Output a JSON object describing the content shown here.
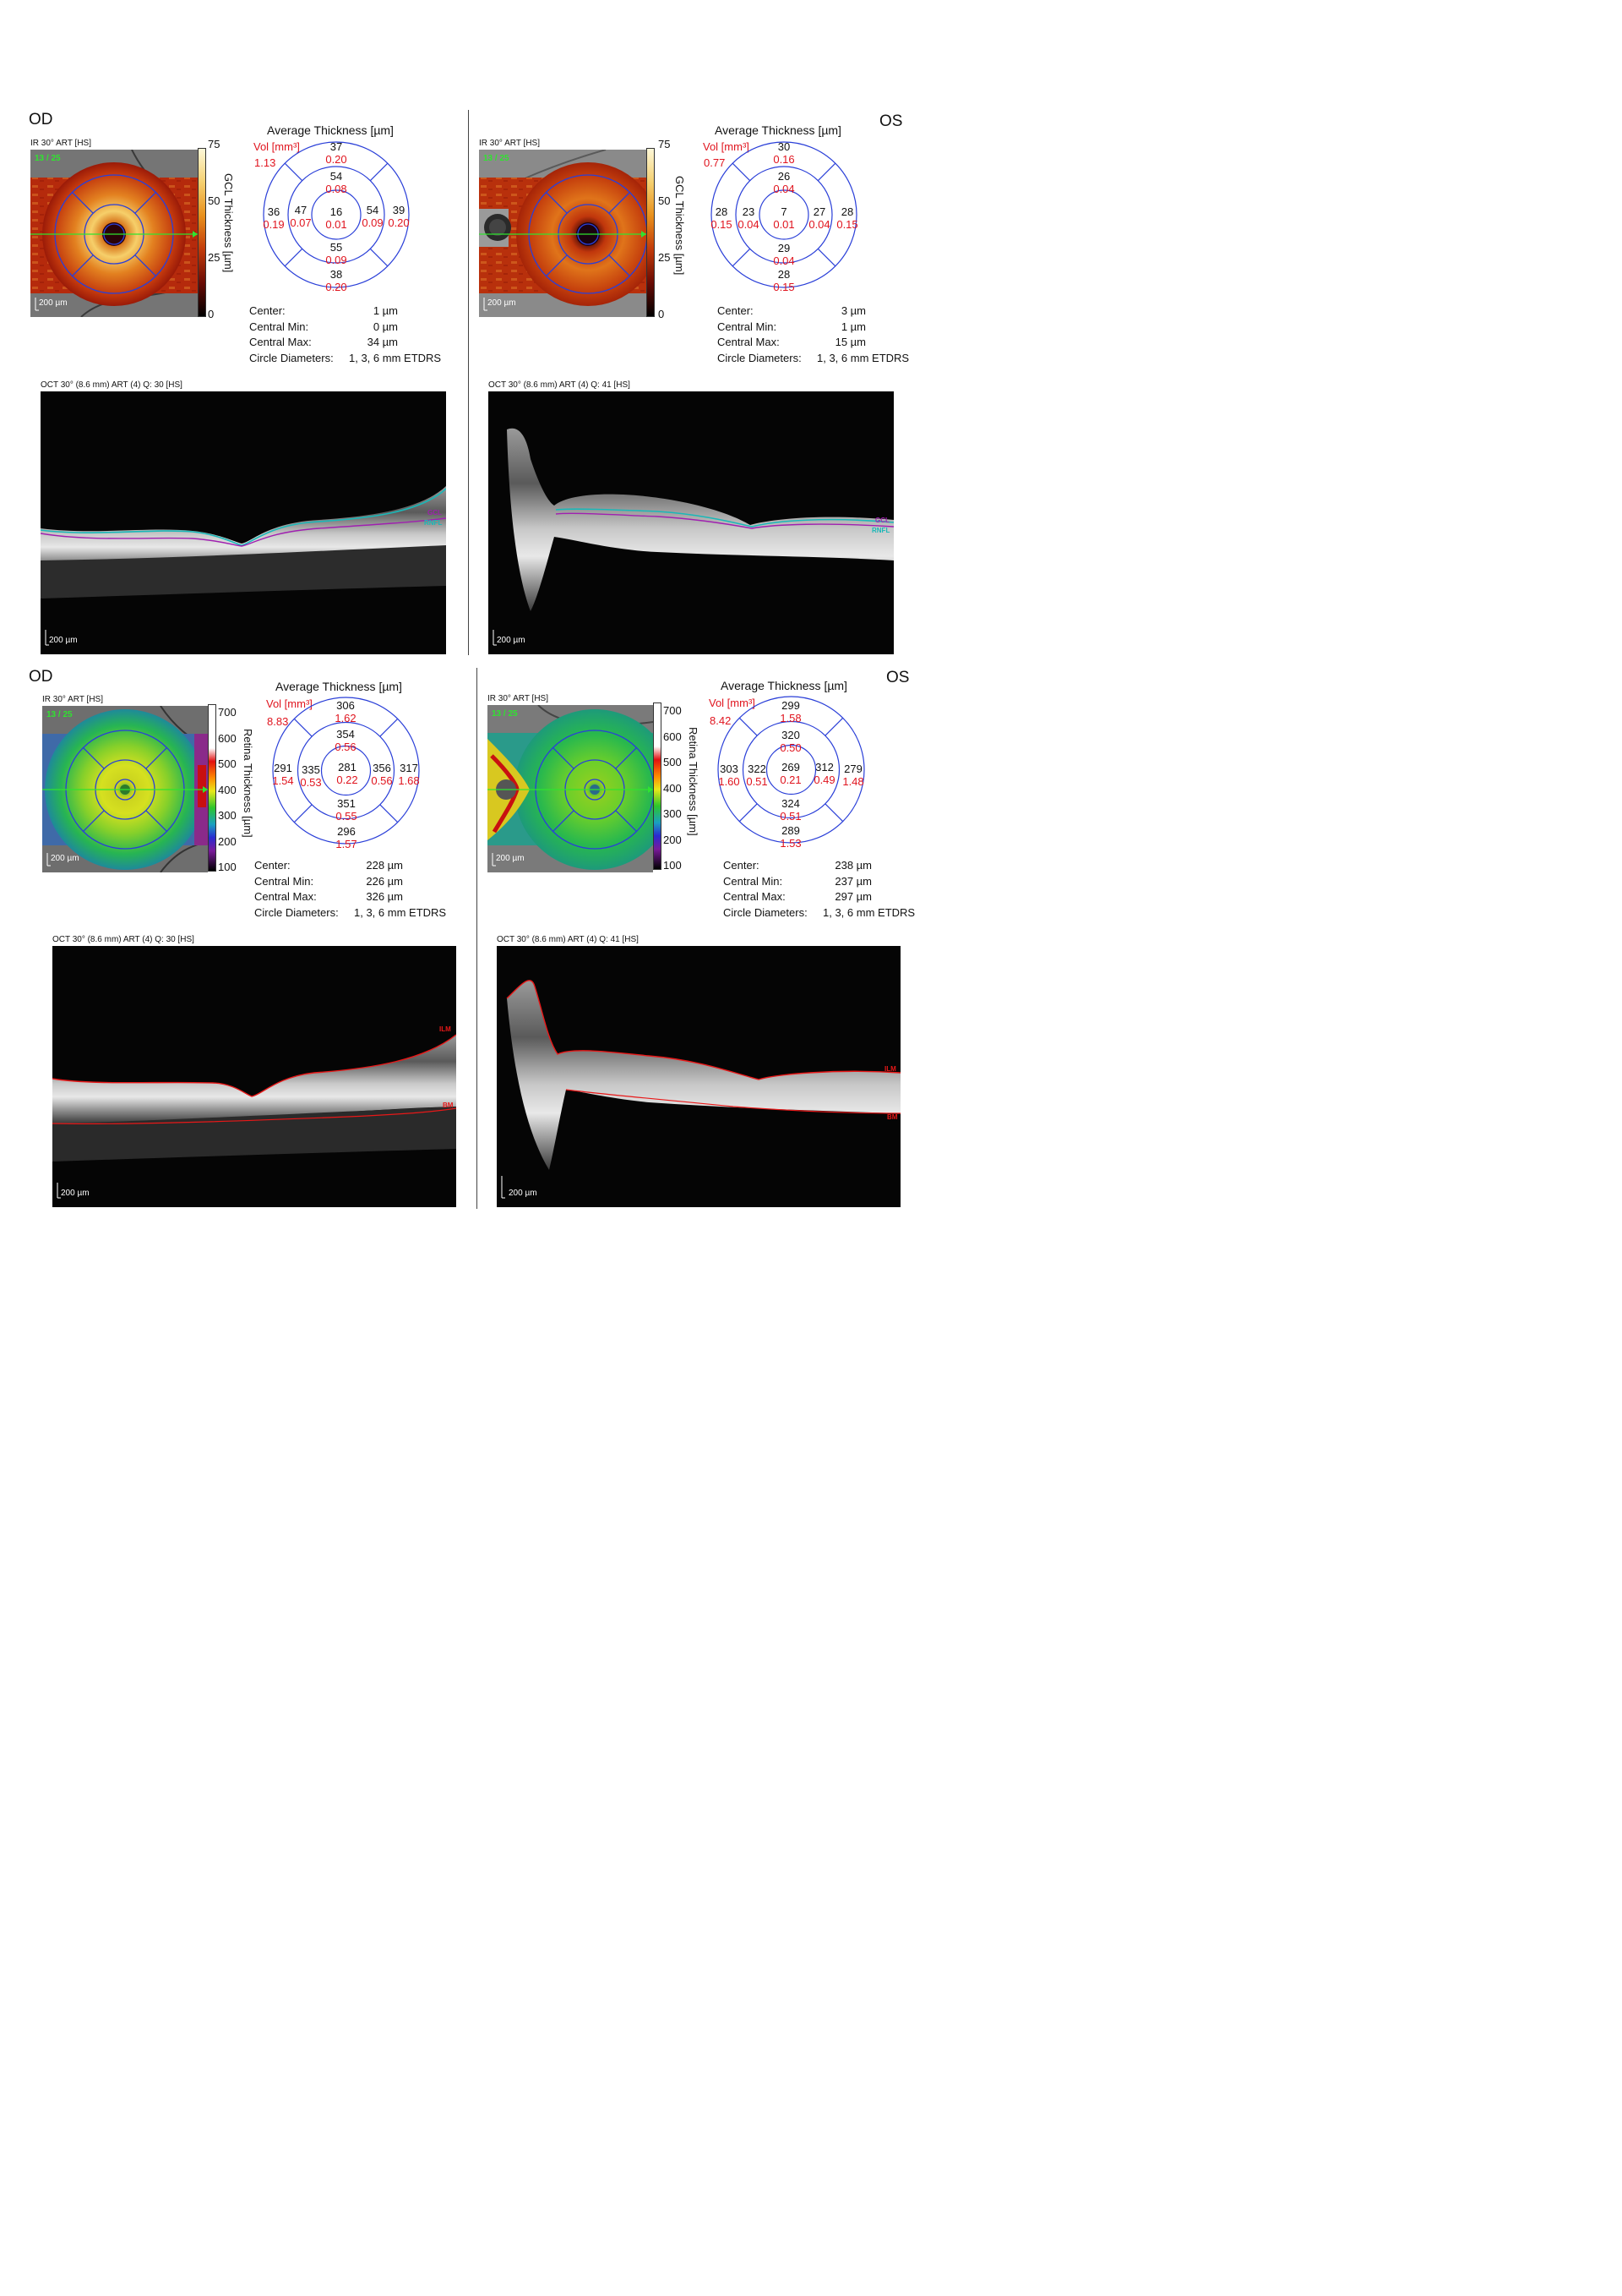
{
  "eyes": {
    "od": "OD",
    "os": "OS"
  },
  "gcl": {
    "od": {
      "ir_caption": "IR 30° ART [HS]",
      "counter": "13 / 25",
      "scale": "200 µm",
      "colorbar_ticks": [
        "75",
        "50",
        "25",
        "0"
      ],
      "colorbar_label": "GCL Thickness [µm]",
      "avg_title": "Average Thickness [µm]",
      "vol_label": "Vol [mm³]",
      "vol_value": "1.13",
      "sectors": {
        "top": {
          "t": "37",
          "v": "0.20"
        },
        "inner_top": {
          "t": "54",
          "v": "0.08"
        },
        "left": {
          "t": "36",
          "v": "0.19"
        },
        "inner_left": {
          "t": "47",
          "v": "0.07"
        },
        "center": {
          "t": "16",
          "v": "0.01"
        },
        "inner_right": {
          "t": "54",
          "v": "0.09"
        },
        "right": {
          "t": "39",
          "v": "0.20"
        },
        "inner_bottom": {
          "t": "55",
          "v": "0.09"
        },
        "bottom": {
          "t": "38",
          "v": "0.20"
        }
      },
      "stats": {
        "center_label": "Center:",
        "center": "1 µm",
        "min_label": "Central Min:",
        "min": "0 µm",
        "max_label": "Central Max:",
        "max": "34 µm",
        "circle_label": "Circle Diameters:",
        "circle": "1, 3, 6 mm ETDRS"
      },
      "oct_caption": "OCT 30° (8.6 mm) ART (4) Q: 30 [HS]",
      "oct_scale": "200 µm",
      "layer_top": "GCL",
      "layer_bottom": "RNFL"
    },
    "os": {
      "ir_caption": "IR 30° ART [HS]",
      "counter": "13 / 25",
      "scale": "200 µm",
      "colorbar_ticks": [
        "75",
        "50",
        "25",
        "0"
      ],
      "colorbar_label": "GCL Thickness [µm]",
      "avg_title": "Average Thickness [µm]",
      "vol_label": "Vol [mm³]",
      "vol_value": "0.77",
      "sectors": {
        "top": {
          "t": "30",
          "v": "0.16"
        },
        "inner_top": {
          "t": "26",
          "v": "0.04"
        },
        "left": {
          "t": "28",
          "v": "0.15"
        },
        "inner_left": {
          "t": "23",
          "v": "0.04"
        },
        "center": {
          "t": "7",
          "v": "0.01"
        },
        "inner_right": {
          "t": "27",
          "v": "0.04"
        },
        "right": {
          "t": "28",
          "v": "0.15"
        },
        "inner_bottom": {
          "t": "29",
          "v": "0.04"
        },
        "bottom": {
          "t": "28",
          "v": "0.15"
        }
      },
      "stats": {
        "center_label": "Center:",
        "center": "3 µm",
        "min_label": "Central Min:",
        "min": "1 µm",
        "max_label": "Central Max:",
        "max": "15 µm",
        "circle_label": "Circle Diameters:",
        "circle": "1, 3, 6 mm ETDRS"
      },
      "oct_caption": "OCT 30° (8.6 mm) ART (4) Q: 41 [HS]",
      "oct_scale": "200 µm",
      "layer_top": "GCL",
      "layer_bottom": "RNFL"
    }
  },
  "retina": {
    "od": {
      "ir_caption": "IR 30° ART [HS]",
      "counter": "13 / 25",
      "scale": "200 µm",
      "colorbar_ticks": [
        "700",
        "600",
        "500",
        "400",
        "300",
        "200",
        "100"
      ],
      "colorbar_label": "Retina Thickness [µm]",
      "avg_title": "Average Thickness [µm]",
      "vol_label": "Vol [mm³]",
      "vol_value": "8.83",
      "sectors": {
        "top": {
          "t": "306",
          "v": "1.62"
        },
        "inner_top": {
          "t": "354",
          "v": "0.56"
        },
        "left": {
          "t": "291",
          "v": "1.54"
        },
        "inner_left": {
          "t": "335",
          "v": "0.53"
        },
        "center": {
          "t": "281",
          "v": "0.22"
        },
        "inner_right": {
          "t": "356",
          "v": "0.56"
        },
        "right": {
          "t": "317",
          "v": "1.68"
        },
        "inner_bottom": {
          "t": "351",
          "v": "0.55"
        },
        "bottom": {
          "t": "296",
          "v": "1.57"
        }
      },
      "stats": {
        "center_label": "Center:",
        "center": "228 µm",
        "min_label": "Central Min:",
        "min": "226 µm",
        "max_label": "Central Max:",
        "max": "326 µm",
        "circle_label": "Circle Diameters:",
        "circle": "1, 3, 6 mm ETDRS"
      },
      "oct_caption": "OCT 30° (8.6 mm) ART (4) Q: 30 [HS]",
      "oct_scale": "200 µm",
      "layer_top": "ILM",
      "layer_bottom": "BM"
    },
    "os": {
      "ir_caption": "IR 30° ART [HS]",
      "counter": "13 / 25",
      "scale": "200 µm",
      "colorbar_ticks": [
        "700",
        "600",
        "500",
        "400",
        "300",
        "200",
        "100"
      ],
      "colorbar_label": "Retina Thickness [µm]",
      "avg_title": "Average Thickness [µm]",
      "vol_label": "Vol [mm³]",
      "vol_value": "8.42",
      "sectors": {
        "top": {
          "t": "299",
          "v": "1.58"
        },
        "inner_top": {
          "t": "320",
          "v": "0.50"
        },
        "left": {
          "t": "303",
          "v": "1.60"
        },
        "inner_left": {
          "t": "322",
          "v": "0.51"
        },
        "center": {
          "t": "269",
          "v": "0.21"
        },
        "inner_right": {
          "t": "312",
          "v": "0.49"
        },
        "right": {
          "t": "279",
          "v": "1.48"
        },
        "inner_bottom": {
          "t": "324",
          "v": "0.51"
        },
        "bottom": {
          "t": "289",
          "v": "1.53"
        }
      },
      "stats": {
        "center_label": "Center:",
        "center": "238 µm",
        "min_label": "Central Min:",
        "min": "237 µm",
        "max_label": "Central Max:",
        "max": "297 µm",
        "circle_label": "Circle Diameters:",
        "circle": "1, 3, 6 mm ETDRS"
      },
      "oct_caption": "OCT 30° (8.6 mm) ART (4) Q: 41 [HS]",
      "oct_scale": "200 µm",
      "layer_top": "ILM",
      "layer_bottom": "BM"
    }
  },
  "colors": {
    "grid": "#2a3fd8",
    "vol": "#e0141e",
    "scan_line": "#2fe42f",
    "gcl_line": "#a020b0",
    "rnfl_line": "#19b8b8",
    "ilm_line": "#e81818"
  }
}
